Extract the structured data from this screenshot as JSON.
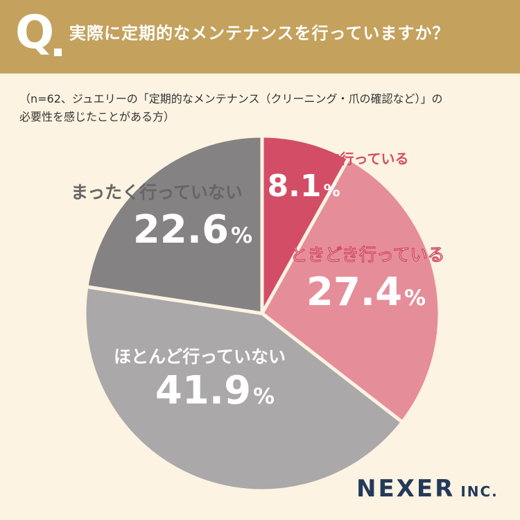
{
  "header": {
    "q_label": "Q",
    "question": "実際に定期的なメンテナンスを行っていますか？"
  },
  "note": {
    "line1": "（n=62、ジュエリーの「定期的なメンテナンス（クリーニング・爪の確認など）」の",
    "line2": "必要性を感じたことがある方）"
  },
  "brand": {
    "name": "NEXER",
    "suffix": "INC."
  },
  "colors": {
    "header_bg": "#c4a25d",
    "background": "#fcf3e2",
    "slice_regular": "#d34d67",
    "slice_sometimes": "#e68d9a",
    "slice_rarely": "#aaa8a9",
    "slice_never": "#848283",
    "label_pink": "#d34d67",
    "label_gray": "#666666",
    "brand": "#243a5a"
  },
  "chart_data": {
    "type": "pie",
    "title": "",
    "start_angle": "12 o'clock, clockwise",
    "slices": [
      {
        "label": "定期的に行っている",
        "value": 8.1,
        "display": "8.1",
        "unit": "%",
        "color": "#d34d67"
      },
      {
        "label": "ときどき行っている",
        "value": 27.4,
        "display": "27.4",
        "unit": "%",
        "color": "#e68d9a"
      },
      {
        "label": "ほとんど行っていない",
        "value": 41.9,
        "display": "41.9",
        "unit": "%",
        "color": "#aaa8a9"
      },
      {
        "label": "まったく行っていない",
        "value": 22.6,
        "display": "22.6",
        "unit": "%",
        "color": "#848283"
      }
    ]
  }
}
